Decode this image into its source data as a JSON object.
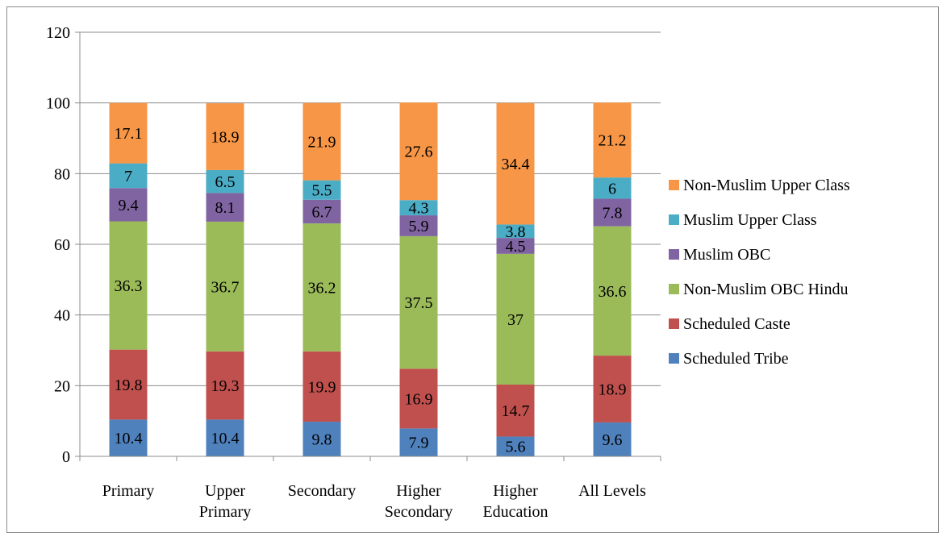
{
  "chart_data": {
    "type": "bar",
    "stacked": true,
    "categories": [
      [
        "Primary"
      ],
      [
        "Upper",
        "Primary"
      ],
      [
        "Secondary"
      ],
      [
        "Higher",
        "Secondary"
      ],
      [
        "Higher",
        "Education"
      ],
      [
        "All Levels"
      ]
    ],
    "series": [
      {
        "name": "Scheduled Tribe",
        "color": "#4f81bd",
        "values": [
          10.4,
          10.4,
          9.8,
          7.9,
          5.6,
          9.6
        ]
      },
      {
        "name": "Scheduled Caste",
        "color": "#c0504d",
        "values": [
          19.8,
          19.3,
          19.9,
          16.9,
          14.7,
          18.9
        ]
      },
      {
        "name": "Non-Muslim OBC Hindu",
        "color": "#9bbb59",
        "values": [
          36.3,
          36.7,
          36.2,
          37.5,
          37,
          36.6
        ]
      },
      {
        "name": "Muslim OBC",
        "color": "#8064a2",
        "values": [
          9.4,
          8.1,
          6.7,
          5.9,
          4.5,
          7.8
        ]
      },
      {
        "name": "Muslim Upper Class",
        "color": "#4bacc6",
        "values": [
          7,
          6.5,
          5.5,
          4.3,
          3.8,
          6
        ]
      },
      {
        "name": "Non-Muslim Upper Class",
        "color": "#f79646",
        "values": [
          17.1,
          18.9,
          21.9,
          27.6,
          34.4,
          21.2
        ]
      }
    ],
    "ylim": [
      0,
      120
    ],
    "yticks": [
      0,
      20,
      40,
      60,
      80,
      100,
      120
    ],
    "gridlines": true,
    "legend_position": "right",
    "title": "",
    "xlabel": "",
    "ylabel": ""
  }
}
